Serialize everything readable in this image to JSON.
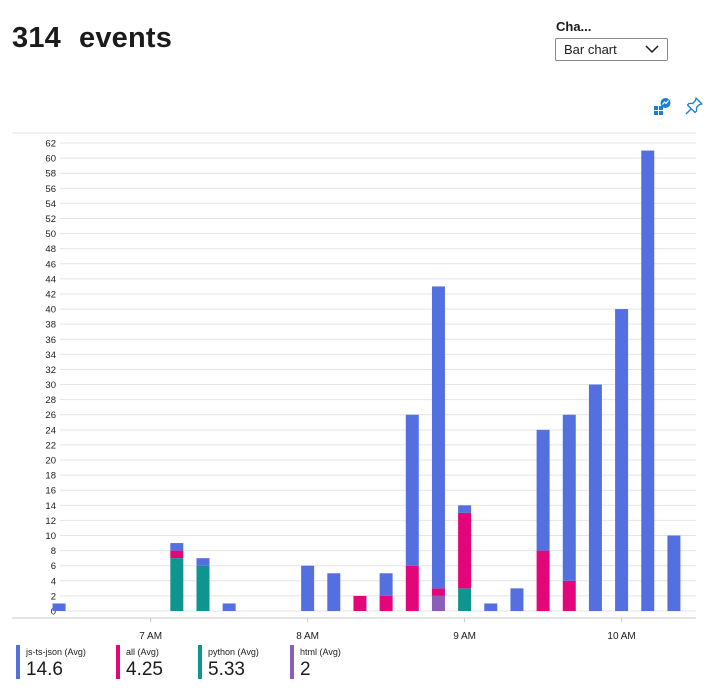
{
  "header": {
    "count": "314",
    "label": "events"
  },
  "chart_type": {
    "label": "Cha...",
    "selected": "Bar chart"
  },
  "toolbar": {
    "insights_icon": "chart-insights-icon",
    "pin_icon": "pin-icon"
  },
  "colors": {
    "js-ts-json": "#5470e0",
    "all": "#e3057a",
    "python": "#0f948f",
    "html": "#8a5fb9",
    "grid": "#e4e4e4",
    "text": "#1b1b1b"
  },
  "chart_data": {
    "type": "bar",
    "stacked": true,
    "title": "",
    "xlabel": "",
    "ylabel": "",
    "ylim": [
      0,
      62
    ],
    "y_ticks": [
      0,
      2,
      4,
      6,
      8,
      10,
      12,
      14,
      16,
      18,
      20,
      22,
      24,
      26,
      28,
      30,
      32,
      34,
      36,
      38,
      40,
      42,
      44,
      46,
      48,
      50,
      52,
      54,
      56,
      58,
      60,
      62
    ],
    "x_range": [
      "06:20",
      "10:25"
    ],
    "x_ticks": [
      {
        "t": "07:00",
        "label": "7 AM"
      },
      {
        "t": "08:00",
        "label": "8 AM"
      },
      {
        "t": "09:00",
        "label": "9 AM"
      },
      {
        "t": "10:00",
        "label": "10 AM"
      }
    ],
    "grid": true,
    "legend_position": "bottom",
    "bars": [
      {
        "t": "06:25",
        "js-ts-json": 1
      },
      {
        "t": "07:10",
        "python": 7,
        "all": 1,
        "js-ts-json": 1
      },
      {
        "t": "07:20",
        "python": 6,
        "js-ts-json": 1
      },
      {
        "t": "07:30",
        "js-ts-json": 1
      },
      {
        "t": "08:00",
        "js-ts-json": 6
      },
      {
        "t": "08:10",
        "js-ts-json": 5
      },
      {
        "t": "08:20",
        "all": 2
      },
      {
        "t": "08:30",
        "all": 2,
        "js-ts-json": 3
      },
      {
        "t": "08:40",
        "all": 6,
        "js-ts-json": 20
      },
      {
        "t": "08:50",
        "html": 2,
        "all": 1,
        "js-ts-json": 40
      },
      {
        "t": "09:00",
        "python": 3,
        "all": 10,
        "js-ts-json": 1
      },
      {
        "t": "09:10",
        "js-ts-json": 1
      },
      {
        "t": "09:20",
        "js-ts-json": 3
      },
      {
        "t": "09:30",
        "all": 8,
        "js-ts-json": 16
      },
      {
        "t": "09:40",
        "all": 4,
        "js-ts-json": 22
      },
      {
        "t": "09:50",
        "js-ts-json": 30
      },
      {
        "t": "10:00",
        "js-ts-json": 40
      },
      {
        "t": "10:10",
        "js-ts-json": 61
      },
      {
        "t": "10:20",
        "js-ts-json": 10
      }
    ],
    "series": [
      {
        "key": "html",
        "name": "html (Avg)",
        "value": "2"
      },
      {
        "key": "python",
        "name": "python (Avg)",
        "value": "5.33"
      },
      {
        "key": "all",
        "name": "all (Avg)",
        "value": "4.25"
      },
      {
        "key": "js-ts-json",
        "name": "js-ts-json (Avg)",
        "value": "14.6"
      }
    ],
    "legend": [
      {
        "key": "js-ts-json",
        "name": "js-ts-json (Avg)",
        "value": "14.6"
      },
      {
        "key": "all",
        "name": "all (Avg)",
        "value": "4.25"
      },
      {
        "key": "python",
        "name": "python (Avg)",
        "value": "5.33"
      },
      {
        "key": "html",
        "name": "html (Avg)",
        "value": "2"
      }
    ]
  }
}
